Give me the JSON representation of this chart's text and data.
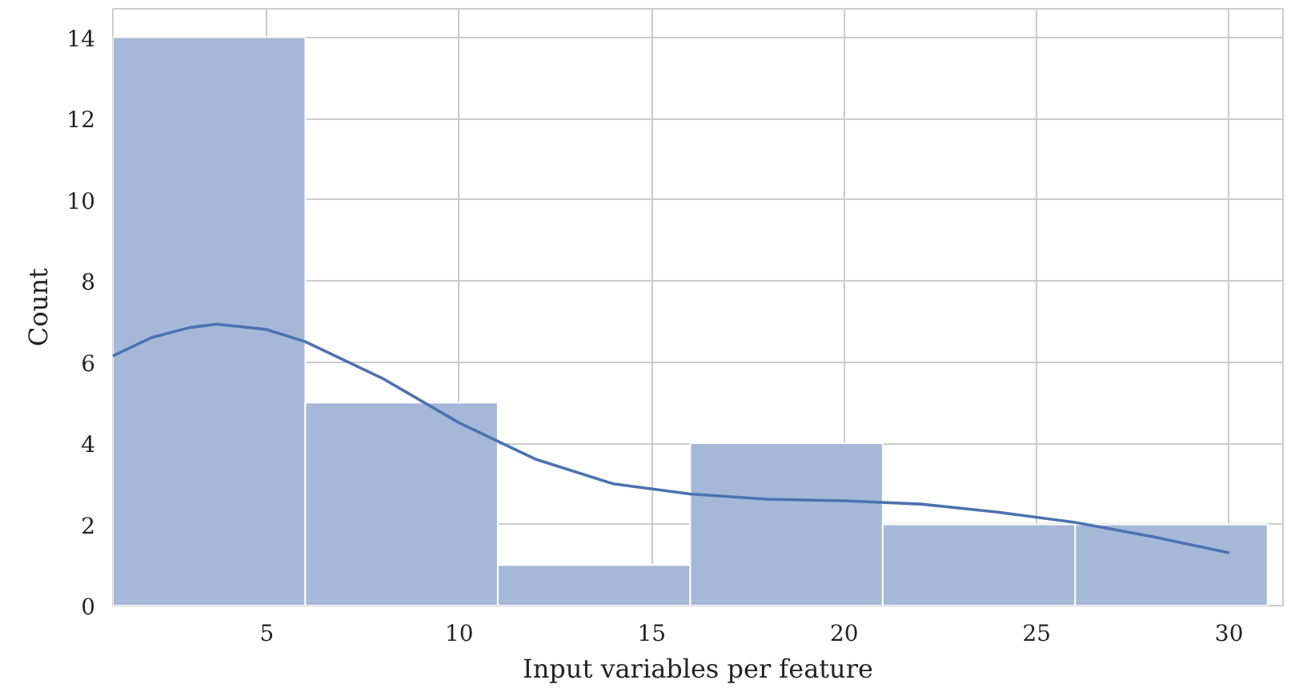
{
  "chart_data": {
    "type": "histogram",
    "xlabel": "Input variables per feature",
    "ylabel": "Count",
    "bins": [
      1,
      6,
      11,
      16,
      21,
      26,
      31
    ],
    "values": [
      14,
      5,
      1,
      4,
      2,
      2
    ],
    "color": "#a5b8d7",
    "series": [
      {
        "type": "line",
        "color": "#4c72b0",
        "x": [
          1,
          2,
          3,
          3.7,
          5,
          6,
          8,
          10,
          12,
          14,
          16,
          18,
          20,
          22,
          24,
          26,
          28,
          30
        ],
        "values": [
          6.15,
          6.6,
          6.85,
          6.93,
          6.8,
          6.5,
          5.6,
          4.5,
          3.6,
          3.0,
          2.75,
          2.62,
          2.58,
          2.5,
          2.3,
          2.05,
          1.7,
          1.3
        ]
      }
    ],
    "xlim": [
      1,
      31.4
    ],
    "ylim": [
      0,
      14.7
    ],
    "xticks": [
      5,
      10,
      15,
      20,
      25,
      30
    ],
    "yticks": [
      0,
      2,
      4,
      6,
      8,
      10,
      12,
      14
    ],
    "grid": true
  }
}
